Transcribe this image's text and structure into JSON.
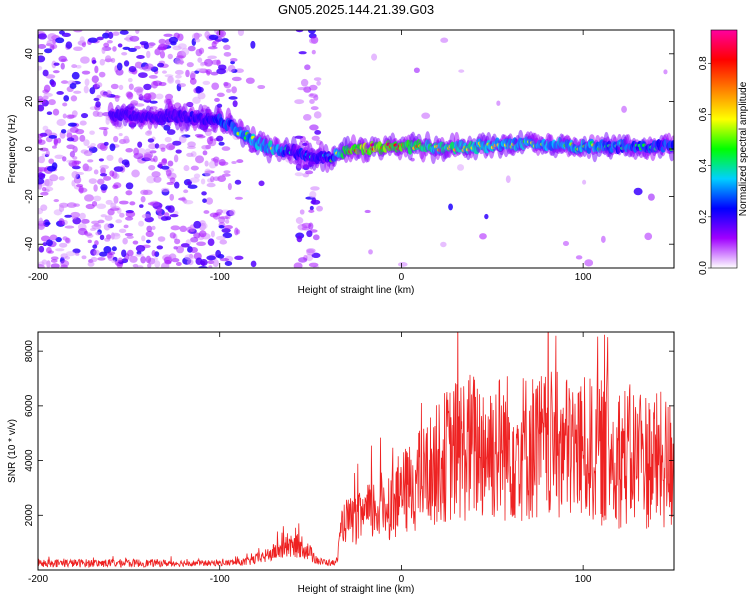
{
  "figure": {
    "title": "GN05.2025.144.21.39.G03"
  },
  "chart_data": [
    {
      "type": "heatmap",
      "title": "GN05.2025.144.21.39.G03",
      "xlabel": "Height of straight line (km)",
      "ylabel": "Frequency (Hz)",
      "xlim": [
        -200,
        150
      ],
      "ylim": [
        -50,
        50
      ],
      "x_ticks": [
        -200,
        -100,
        0,
        100
      ],
      "y_ticks": [
        -40,
        -20,
        0,
        20,
        40
      ],
      "x_tick_labels": [
        "-200",
        "-100",
        "0",
        "100"
      ],
      "y_tick_labels": [
        "-40",
        "-20",
        "0",
        "20",
        "40"
      ],
      "colorbar": {
        "label": "Normalized spectral amplitude",
        "range": [
          0,
          0.93
        ],
        "ticks": [
          0.0,
          0.2,
          0.4,
          0.6,
          0.8
        ],
        "tick_labels": [
          "0.0",
          "0.2",
          "0.4",
          "0.6",
          "0.8"
        ],
        "colormap": [
          "#ffffff",
          "#a000ff",
          "#0000ff",
          "#00d0ff",
          "#00ff00",
          "#ffff00",
          "#ff8000",
          "#ff0000",
          "#ff00a0"
        ]
      },
      "ridge": {
        "description_points_x": [
          -155,
          -130,
          -110,
          -100,
          -90,
          -80,
          -70,
          -60,
          -50,
          -40,
          -30,
          -20,
          0,
          20,
          40,
          60,
          80,
          100,
          120,
          150
        ],
        "frequency_y": [
          14,
          14,
          13,
          12,
          8,
          3,
          0,
          -1,
          -3,
          -4,
          -1,
          0,
          1,
          1,
          1,
          2,
          2,
          1,
          1,
          1
        ],
        "peak_amplitude": [
          0.2,
          0.2,
          0.25,
          0.35,
          0.45,
          0.5,
          0.55,
          0.3,
          0.3,
          0.3,
          0.75,
          0.85,
          0.75,
          0.6,
          0.6,
          0.5,
          0.5,
          0.5,
          0.4,
          0.4
        ]
      },
      "grid": false
    },
    {
      "type": "line",
      "xlabel": "Height of straight line (km)",
      "ylabel": "SNR (10 * v/v)",
      "xlim": [
        -200,
        150
      ],
      "ylim": [
        0,
        8700
      ],
      "x_ticks": [
        -200,
        -100,
        0,
        100
      ],
      "y_ticks": [
        2000,
        4000,
        6000,
        8000
      ],
      "x_tick_labels": [
        "-200",
        "-100",
        "0",
        "100"
      ],
      "y_tick_labels": [
        "2000",
        "4000",
        "6000",
        "8000"
      ],
      "series": [
        {
          "color": "#ee2222",
          "envelope_x": [
            -200,
            -150,
            -120,
            -100,
            -85,
            -75,
            -65,
            -55,
            -45,
            -36,
            -32,
            -25,
            -15,
            -5,
            5,
            15,
            25,
            35,
            45,
            60,
            80,
            100,
            120,
            140,
            150
          ],
          "envelope_y": [
            250,
            250,
            250,
            250,
            300,
            500,
            800,
            900,
            300,
            250,
            1800,
            1800,
            2200,
            2500,
            3000,
            3600,
            4200,
            4500,
            4500,
            4500,
            4500,
            4400,
            4200,
            4000,
            3800
          ],
          "noise_amplitude": [
            150,
            150,
            120,
            100,
            150,
            250,
            400,
            450,
            150,
            100,
            800,
            900,
            1200,
            1400,
            1700,
            2000,
            2500,
            2800,
            2800,
            2800,
            2800,
            2700,
            2700,
            2600,
            2500
          ]
        }
      ],
      "grid": false
    }
  ]
}
